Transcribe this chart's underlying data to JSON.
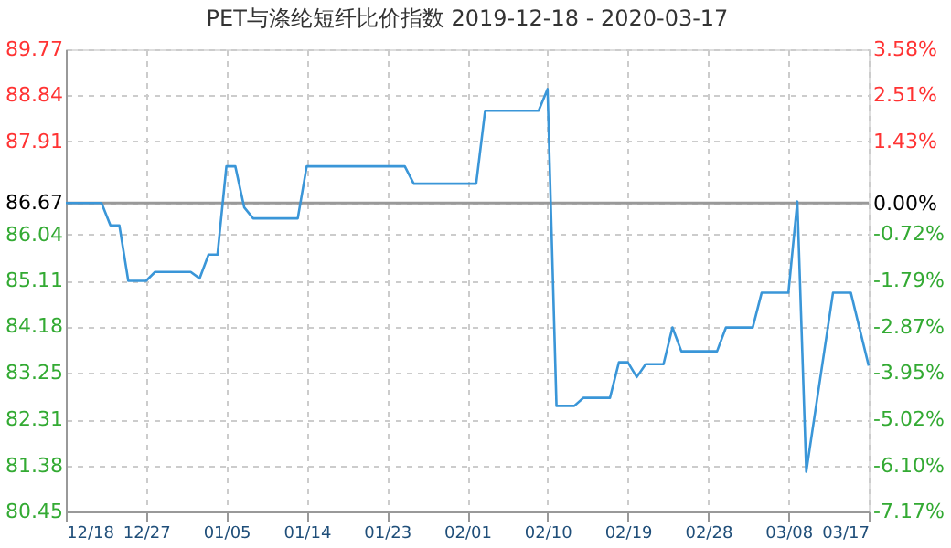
{
  "chart_data": {
    "type": "line",
    "title": "PET与涤纶短纤比价指数 2019-12-18 - 2020-03-17",
    "x": [
      "2019-12-18",
      "2019-12-22",
      "2019-12-23",
      "2019-12-24",
      "2019-12-25",
      "2019-12-27",
      "2019-12-28",
      "2020-01-01",
      "2020-01-02",
      "2020-01-03",
      "2020-01-04",
      "2020-01-05",
      "2020-01-06",
      "2020-01-07",
      "2020-01-08",
      "2020-01-13",
      "2020-01-14",
      "2020-01-25",
      "2020-01-26",
      "2020-02-02",
      "2020-02-03",
      "2020-02-09",
      "2020-02-10",
      "2020-02-11",
      "2020-02-13",
      "2020-02-14",
      "2020-02-17",
      "2020-02-18",
      "2020-02-19",
      "2020-02-20",
      "2020-02-21",
      "2020-02-23",
      "2020-02-24",
      "2020-02-25",
      "2020-02-29",
      "2020-03-01",
      "2020-03-04",
      "2020-03-05",
      "2020-03-08",
      "2020-03-09",
      "2020-03-10",
      "2020-03-13",
      "2020-03-15",
      "2020-03-17"
    ],
    "series": [
      {
        "color": "#3a96d8",
        "values": [
          86.67,
          86.67,
          86.22,
          86.22,
          85.1,
          85.1,
          85.28,
          85.28,
          85.15,
          85.63,
          85.63,
          87.41,
          87.41,
          86.58,
          86.36,
          86.36,
          87.41,
          87.41,
          87.06,
          87.06,
          88.53,
          88.53,
          88.97,
          82.58,
          82.58,
          82.74,
          82.74,
          83.46,
          83.46,
          83.16,
          83.42,
          83.42,
          84.16,
          83.68,
          83.68,
          84.16,
          84.16,
          84.86,
          84.86,
          86.7,
          81.25,
          84.86,
          84.86,
          83.39
        ]
      }
    ],
    "xlim": [
      "2019-12-18",
      "2020-03-17"
    ],
    "xticks": [
      {
        "value": "2019-12-18",
        "label": "12/18"
      },
      {
        "value": "2019-12-27",
        "label": "12/27"
      },
      {
        "value": "2020-01-05",
        "label": "01/05"
      },
      {
        "value": "2020-01-14",
        "label": "01/14"
      },
      {
        "value": "2020-01-23",
        "label": "01/23"
      },
      {
        "value": "2020-02-01",
        "label": "02/01"
      },
      {
        "value": "2020-02-10",
        "label": "02/10"
      },
      {
        "value": "2020-02-19",
        "label": "02/19"
      },
      {
        "value": "2020-02-28",
        "label": "02/28"
      },
      {
        "value": "2020-03-08",
        "label": "03/08"
      },
      {
        "value": "2020-03-17",
        "label": "03/17"
      }
    ],
    "ylim": [
      80.45,
      89.77
    ],
    "yticks": [
      80.45,
      81.38,
      82.31,
      83.25,
      84.18,
      85.11,
      86.04,
      86.67,
      87.91,
      88.84,
      89.77
    ],
    "y2lim": [
      -7.17,
      3.58
    ],
    "y2ticks": [
      {
        "value": -7.17,
        "label": "-7.17%"
      },
      {
        "value": -6.1,
        "label": "-6.10%"
      },
      {
        "value": -5.02,
        "label": "-5.02%"
      },
      {
        "value": -3.95,
        "label": "-3.95%"
      },
      {
        "value": -2.87,
        "label": "-2.87%"
      },
      {
        "value": -1.79,
        "label": "-1.79%"
      },
      {
        "value": -0.72,
        "label": "-0.72%"
      },
      {
        "value": 0,
        "label": "0.00%"
      },
      {
        "value": 1.43,
        "label": "1.43%"
      },
      {
        "value": 2.51,
        "label": "2.51%"
      },
      {
        "value": 3.58,
        "label": "3.58%"
      }
    ],
    "ref_lines": [
      {
        "axis": "y",
        "value": 86.67,
        "color": "#999999"
      }
    ],
    "grid": true,
    "marker": "none",
    "line_style": "solid"
  }
}
